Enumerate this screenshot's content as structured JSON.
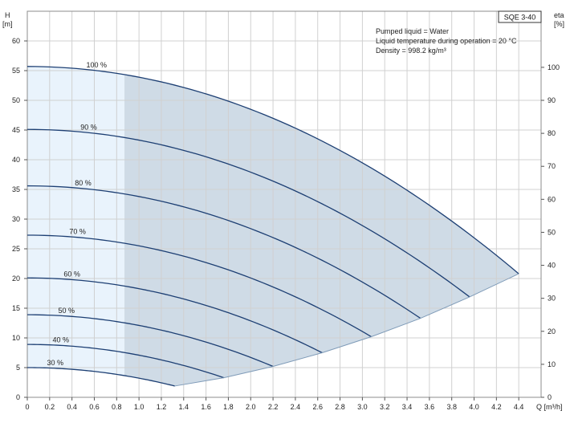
{
  "chart_data": {
    "type": "line",
    "title": "SQE 3-40",
    "notes": [
      "Pumped liquid = Water",
      "Liquid temperature during operation = 20 °C",
      "Density = 998.2 kg/m³"
    ],
    "left_axis": {
      "label_top": "H",
      "label_unit": "[m]",
      "range": [
        0,
        65
      ],
      "ticks": [
        0,
        5,
        10,
        15,
        20,
        25,
        30,
        35,
        40,
        45,
        50,
        55,
        60
      ]
    },
    "right_axis": {
      "label_top": "eta",
      "label_unit": "[%]",
      "ticks": [
        0,
        10,
        20,
        30,
        40,
        50,
        60,
        70,
        80,
        90,
        100
      ]
    },
    "x_axis": {
      "label": "Q [m³/h]",
      "range": [
        0,
        4.6
      ],
      "ticks": [
        "0",
        "0.2",
        "0.4",
        "0.6",
        "0.8",
        "1.0",
        "1.2",
        "1.4",
        "1.6",
        "1.8",
        "2.0",
        "2.2",
        "2.4",
        "2.6",
        "2.8",
        "3.0",
        "3.2",
        "3.4",
        "3.6",
        "3.8",
        "4.0",
        "4.2",
        "4.4"
      ]
    },
    "grid": true,
    "operating_region": {
      "q_min": 0.87
    },
    "series": [
      {
        "name": "100 %",
        "h0": 55.7,
        "q_end": 4.4,
        "h_end": 20.8
      },
      {
        "name": "90 %",
        "h0": 45.1,
        "q_end": 3.96,
        "h_end": 16.9
      },
      {
        "name": "80 %",
        "h0": 35.6,
        "q_end": 3.52,
        "h_end": 13.3
      },
      {
        "name": "70 %",
        "h0": 27.3,
        "q_end": 3.08,
        "h_end": 10.2
      },
      {
        "name": "60 %",
        "h0": 20.1,
        "q_end": 2.64,
        "h_end": 7.5
      },
      {
        "name": "50 %",
        "h0": 13.9,
        "q_end": 2.2,
        "h_end": 5.2
      },
      {
        "name": "40 %",
        "h0": 8.9,
        "q_end": 1.76,
        "h_end": 3.3
      },
      {
        "name": "30 %",
        "h0": 5.0,
        "q_end": 1.32,
        "h_end": 1.9
      }
    ]
  }
}
